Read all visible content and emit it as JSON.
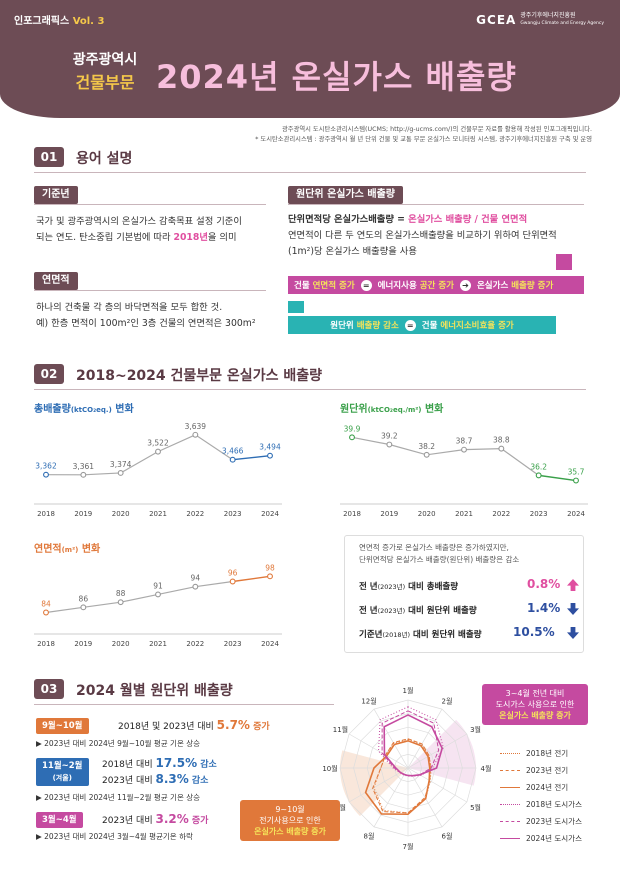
{
  "header": {
    "series_tag": "인포그래픽스",
    "series_vol": "Vol. 3",
    "logo_mark": "GCEA",
    "logo_name": "광주기후에너지진흥원",
    "logo_sub": "Gwangju Climate and Energy Agency",
    "city": "광주광역시",
    "sector": "건물부문",
    "title": "2024년 온실가스 배출량"
  },
  "source": {
    "line1": "광주광역시 도시탄소관리시스템(UCMS; http://g-ucms.com/)의 건물부문 자료를 활용해 작성된 인포그래픽입니다.",
    "line2": "* 도시탄소관리시스템 : 광주광역시 월 년 단위 건물 및 교통 부문 온실가스 모니터링 시스템, 광주기후에너지진흥원 구축 및 운영"
  },
  "section1": {
    "num": "01",
    "title": "용어 설명",
    "baseyear": {
      "label": "기준년",
      "line1": "국가 및 광주광역시의 온실가스 감축목표 설정 기준이",
      "line2_pre": "되는 연도. 탄소중립 기본법에 따라 ",
      "line2_hl": "2018년",
      "line2_post": "을 의미"
    },
    "area": {
      "label": "연면적",
      "line1": "하나의 건축물 각 층의 바닥면적을 모두 합한 것.",
      "line2": "예) 한층 면적이 100m²인 3층 건물의 연면적은 300m²"
    },
    "intensity": {
      "label": "원단위 온실가스 배출량",
      "def_pre": "단위면적당 온실가스배출량 = ",
      "def_hl": "온실가스 배출량 / 건물 연면적",
      "line2": "연면적이 다른 두 연도의 온실가스배출량을 비교하기 위하여 단위면적",
      "line3": "(1m²)당 온실가스 배출량을 사용",
      "row1": [
        {
          "pre": "건물 ",
          "hl": "연면적 증가"
        },
        {
          "pre": "에너지사용 ",
          "hl": "공간 증가"
        },
        {
          "pre": "온실가스 ",
          "hl": "배출량 증가"
        }
      ],
      "row2": [
        {
          "pre": "원단위 ",
          "hl": "배출량 감소"
        },
        {
          "pre": "건물 ",
          "hl": "에너지소비효율 증가"
        }
      ],
      "eq_symbol": "=",
      "arrow_symbol": "➔"
    }
  },
  "section2": {
    "num": "02",
    "title": "2018~2024 건물부문 온실가스 배출량",
    "total": {
      "title": "총배출량",
      "unit": "(ktCO₂eq.)",
      "suffix": "변화",
      "color": "#2e6db4"
    },
    "unit_intensity": {
      "title": "원단위",
      "unit": "(ktCO₂eq./m²)",
      "suffix": "변화",
      "color": "#3aa04a"
    },
    "area_chart": {
      "title": "연면적",
      "unit": "(m²)",
      "suffix": "변화",
      "color": "#e0783a"
    },
    "summary": {
      "note1": "연면적 증가로 온실가스 배출량은 증가하였지만,",
      "note2": "단위면적당 온실가스 배출량(원단위) 배출량은 감소",
      "rows": [
        {
          "label_a": "전   년",
          "label_small": "(2023년)",
          "label_b": " 대비 총배출량",
          "value": "0.8%",
          "dir": "up",
          "color": "#e04fa0"
        },
        {
          "label_a": "전   년",
          "label_small": "(2023년)",
          "label_b": " 대비 원단위 배출량",
          "value": "1.4%",
          "dir": "down",
          "color": "#2e4fa0"
        },
        {
          "label_a": "기준년",
          "label_small": "(2018년)",
          "label_b": " 대비 원단위 배출량",
          "value": "10.5%",
          "dir": "down",
          "color": "#2e4fa0"
        }
      ]
    }
  },
  "section3": {
    "num": "03",
    "title": "2024 월별 원단위 배출량",
    "items": [
      {
        "pill": "9월~10월",
        "pill_color": "#e0783a",
        "lines": [
          {
            "pre": "2018년 및 2023년 대비 ",
            "val": "5.7%",
            "post": " 증가",
            "color": "#e0783a"
          }
        ],
        "note": "▶ 2023년 대비 2024년 9월~10월 평균 기온 상승"
      },
      {
        "pill": "11월~2월",
        "pill_sub": "(겨울)",
        "pill_color": "#2e6db4",
        "lines": [
          {
            "pre": "2018년 대비 ",
            "val": "17.5%",
            "post": " 감소",
            "color": "#2e6db4"
          },
          {
            "pre": "2023년 대비 ",
            "val": "8.3%",
            "post": " 감소",
            "color": "#2e6db4"
          }
        ],
        "note": "▶ 2023년 대비 2024년 11월~2월 평균 기온 상승"
      },
      {
        "pill": "3월~4월",
        "pill_color": "#c54aa0",
        "lines": [
          {
            "pre": "2023년 대비 ",
            "val": "3.2%",
            "post": " 증가",
            "color": "#c54aa0"
          }
        ],
        "note": "▶ 2023년 대비 2024년 3월~4월 평균기온 하락"
      }
    ],
    "months": [
      "1월",
      "2월",
      "3월",
      "4월",
      "5월",
      "6월",
      "7월",
      "8월",
      "9월",
      "10월",
      "11월",
      "12월"
    ],
    "legend": [
      {
        "label": "2018년 전기",
        "color": "#e0783a",
        "style": "dotted"
      },
      {
        "label": "2023년 전기",
        "color": "#e0783a",
        "style": "dashed"
      },
      {
        "label": "2024년 전기",
        "color": "#e0783a",
        "style": "solid"
      },
      {
        "label": "2018년 도시가스",
        "color": "#c54aa0",
        "style": "dotted"
      },
      {
        "label": "2023년 도시가스",
        "color": "#c54aa0",
        "style": "dashed"
      },
      {
        "label": "2024년 도시가스",
        "color": "#c54aa0",
        "style": "solid"
      }
    ],
    "callout_spring": {
      "l1": "3~4월 전년 대비",
      "l2": "도시가스 사용으로 인한",
      "l3": "온실가스 배출량 증가"
    },
    "callout_autumn": {
      "l1": "9~10월",
      "l2": "전기사용으로 인한",
      "l3": "온실가스 배출량 증가"
    }
  },
  "chart_data": [
    {
      "type": "line",
      "title": "총배출량 (ktCO₂eq.) 변화",
      "x": [
        "2018",
        "2019",
        "2020",
        "2021",
        "2022",
        "2023",
        "2024"
      ],
      "series": [
        {
          "values": [
            3362,
            3361,
            3374,
            3522,
            3639,
            3466,
            3494
          ]
        }
      ],
      "labels": [
        "3,362",
        "3,361",
        "3,374",
        "3,522",
        "3,639",
        "3,466",
        "3,494"
      ],
      "ylim": [
        3200,
        3700
      ]
    },
    {
      "type": "line",
      "title": "원단위 (ktCO₂eq./m²) 변화",
      "x": [
        "2018",
        "2019",
        "2020",
        "2021",
        "2022",
        "2023",
        "2024"
      ],
      "series": [
        {
          "values": [
            39.9,
            39.2,
            38.2,
            38.7,
            38.8,
            36.2,
            35.7
          ]
        }
      ],
      "labels": [
        "39.9",
        "39.2",
        "38.2",
        "38.7",
        "38.8",
        "36.2",
        "35.7"
      ],
      "ylim": [
        34,
        41
      ]
    },
    {
      "type": "line",
      "title": "연면적 (m²) 변화",
      "x": [
        "2018",
        "2019",
        "2020",
        "2021",
        "2022",
        "2023",
        "2024"
      ],
      "series": [
        {
          "values": [
            84,
            86,
            88,
            91,
            94,
            96,
            98
          ]
        }
      ],
      "labels": [
        "84",
        "86",
        "88",
        "91",
        "94",
        "96",
        "98"
      ],
      "ylim": [
        78,
        102
      ]
    },
    {
      "type": "radar",
      "categories": [
        "1월",
        "2월",
        "3월",
        "4월",
        "5월",
        "6월",
        "7월",
        "8월",
        "9월",
        "10월",
        "11월",
        "12월"
      ],
      "series": [
        {
          "name": "2018년 전기",
          "values": [
            0.42,
            0.4,
            0.36,
            0.34,
            0.38,
            0.52,
            0.66,
            0.72,
            0.58,
            0.4,
            0.38,
            0.42
          ]
        },
        {
          "name": "2023년 전기",
          "values": [
            0.43,
            0.41,
            0.36,
            0.33,
            0.37,
            0.5,
            0.66,
            0.74,
            0.6,
            0.4,
            0.38,
            0.43
          ]
        },
        {
          "name": "2024년 전기",
          "values": [
            0.4,
            0.38,
            0.34,
            0.32,
            0.36,
            0.52,
            0.68,
            0.78,
            0.72,
            0.5,
            0.36,
            0.4
          ]
        },
        {
          "name": "2018년 도시가스",
          "values": [
            0.9,
            0.82,
            0.6,
            0.36,
            0.22,
            0.14,
            0.12,
            0.12,
            0.14,
            0.22,
            0.5,
            0.82
          ]
        },
        {
          "name": "2023년 도시가스",
          "values": [
            0.84,
            0.76,
            0.52,
            0.34,
            0.2,
            0.13,
            0.11,
            0.11,
            0.13,
            0.2,
            0.44,
            0.76
          ]
        },
        {
          "name": "2024년 도시가스",
          "values": [
            0.78,
            0.7,
            0.58,
            0.42,
            0.2,
            0.13,
            0.11,
            0.11,
            0.13,
            0.18,
            0.4,
            0.7
          ]
        }
      ],
      "rlim": [
        0,
        1
      ]
    }
  ]
}
